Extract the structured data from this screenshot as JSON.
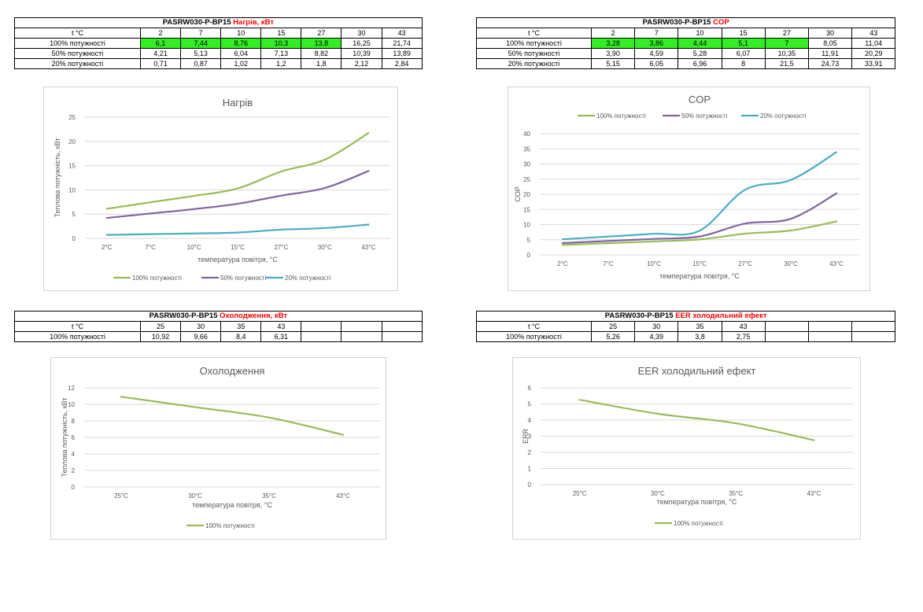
{
  "tables": [
    {
      "title_model": "PASRW030-P-BP15",
      "title_param": "Нагрів, кВт",
      "header_label": "t °C",
      "columns": [
        "2",
        "7",
        "10",
        "15",
        "27",
        "30",
        "43"
      ],
      "rows": [
        {
          "label": "100% потужності",
          "cells": [
            "6,1",
            "7,44",
            "8,76",
            "10,3",
            "13,8",
            "16,25",
            "21,74"
          ],
          "highlight": [
            0,
            1,
            2,
            3,
            4
          ]
        },
        {
          "label": "50% потужності",
          "cells": [
            "4,21",
            "5,13",
            "6,04",
            "7,13",
            "8,82",
            "10,39",
            "13,89"
          ],
          "highlight": []
        },
        {
          "label": "20% потужності",
          "cells": [
            "0,71",
            "0,87",
            "1,02",
            "1,2",
            "1,8",
            "2,12",
            "2,84"
          ],
          "highlight": []
        }
      ]
    },
    {
      "title_model": "PASRW030-P-BP15",
      "title_param": "COP",
      "header_label": "t °C",
      "columns": [
        "2",
        "7",
        "10",
        "15",
        "27",
        "30",
        "43"
      ],
      "rows": [
        {
          "label": "100% потужності",
          "cells": [
            "3,28",
            "3,86",
            "4,44",
            "5,1",
            "7",
            "8,05",
            "11,04"
          ],
          "highlight": [
            0,
            1,
            2,
            3,
            4
          ]
        },
        {
          "label": "50% потужності",
          "cells": [
            "3,90",
            "4,59",
            "5,28",
            "6,07",
            "10,35",
            "11,91",
            "20,29"
          ],
          "highlight": []
        },
        {
          "label": "20% потужності",
          "cells": [
            "5,15",
            "6,05",
            "6,96",
            "8",
            "21,5",
            "24,73",
            "33,91"
          ],
          "highlight": []
        }
      ]
    },
    {
      "title_model": "PASRW030-P-BP15",
      "title_param": "Охолодження, кВт",
      "header_label": "t °C",
      "columns": [
        "25",
        "30",
        "35",
        "43",
        "",
        "",
        ""
      ],
      "rows": [
        {
          "label": "100% потужності",
          "cells": [
            "10,92",
            "9,66",
            "8,4",
            "6,31",
            "",
            "",
            ""
          ],
          "highlight": []
        }
      ]
    },
    {
      "title_model": "PASRW030-P-BP15",
      "title_param": "EER холодильний ефект",
      "header_label": "t °C",
      "columns": [
        "25",
        "30",
        "35",
        "43",
        "",
        "",
        ""
      ],
      "rows": [
        {
          "label": "100% потужності",
          "cells": [
            "5,26",
            "4,39",
            "3,8",
            "2,75",
            "",
            "",
            ""
          ],
          "highlight": []
        }
      ]
    }
  ],
  "chart_data": [
    {
      "type": "line",
      "title": "Нагрів",
      "xlabel": "температура повітря, °C",
      "ylabel": "Теплова потужність, кВт",
      "categories": [
        "2°C",
        "7°C",
        "10°C",
        "15°C",
        "27°C",
        "30°C",
        "43°C"
      ],
      "ylim": [
        0,
        25
      ],
      "yticks": [
        0,
        5,
        10,
        15,
        20,
        25
      ],
      "grid": true,
      "legend": "bottom",
      "series": [
        {
          "name": "100% потужності",
          "color": "#9bbb59",
          "values": [
            6.1,
            7.44,
            8.76,
            10.3,
            13.8,
            16.25,
            21.74
          ]
        },
        {
          "name": "50% потужності",
          "color": "#8064a2",
          "values": [
            4.21,
            5.13,
            6.04,
            7.13,
            8.82,
            10.39,
            13.89
          ]
        },
        {
          "name": "20% потужності",
          "color": "#4bacc6",
          "values": [
            0.71,
            0.87,
            1.02,
            1.2,
            1.8,
            2.12,
            2.84
          ]
        }
      ]
    },
    {
      "type": "line",
      "title": "COP",
      "xlabel": "температура повітря, °C",
      "ylabel": "COP",
      "categories": [
        "2°C",
        "7°C",
        "10°C",
        "15°C",
        "27°C",
        "30°C",
        "43°C"
      ],
      "ylim": [
        0,
        40
      ],
      "yticks": [
        0,
        5,
        10,
        15,
        20,
        25,
        30,
        35,
        40
      ],
      "grid": true,
      "legend": "top",
      "series": [
        {
          "name": "100% потужності",
          "color": "#9bbb59",
          "values": [
            3.28,
            3.86,
            4.44,
            5.1,
            7,
            8.05,
            11.04
          ]
        },
        {
          "name": "50% потужності",
          "color": "#8064a2",
          "values": [
            3.9,
            4.59,
            5.28,
            6.07,
            10.35,
            11.91,
            20.29
          ]
        },
        {
          "name": "20% потужності",
          "color": "#4bacc6",
          "values": [
            5.15,
            6.05,
            6.96,
            8,
            21.5,
            24.73,
            33.91
          ]
        }
      ]
    },
    {
      "type": "line",
      "title": "Охолодження",
      "xlabel": "температура повітря, °C",
      "ylabel": "Теплова потужність, кВт",
      "categories": [
        "25°C",
        "30°C",
        "35°C",
        "43°C"
      ],
      "ylim": [
        0,
        12
      ],
      "yticks": [
        0,
        2,
        4,
        6,
        8,
        10,
        12
      ],
      "grid": true,
      "legend": "bottom",
      "series": [
        {
          "name": "100% потужності",
          "color": "#9bbb59",
          "values": [
            10.92,
            9.66,
            8.4,
            6.31
          ]
        }
      ]
    },
    {
      "type": "line",
      "title": "EER холодильний ефект",
      "xlabel": "температура повітря, °C",
      "ylabel": "ERR",
      "categories": [
        "25°C",
        "30°C",
        "35°C",
        "43°C"
      ],
      "ylim": [
        0,
        6
      ],
      "yticks": [
        0,
        1,
        2,
        3,
        4,
        5,
        6
      ],
      "grid": true,
      "legend": "bottom",
      "series": [
        {
          "name": "100% потужності",
          "color": "#9bbb59",
          "values": [
            5.26,
            4.39,
            3.8,
            2.75
          ]
        }
      ]
    }
  ]
}
